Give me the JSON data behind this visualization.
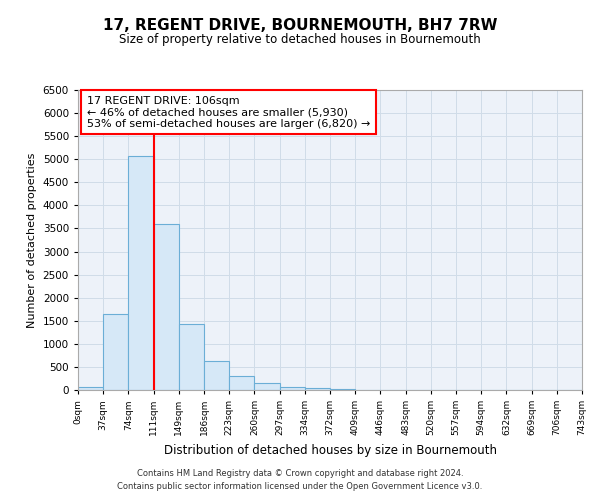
{
  "title": "17, REGENT DRIVE, BOURNEMOUTH, BH7 7RW",
  "subtitle": "Size of property relative to detached houses in Bournemouth",
  "xlabel": "Distribution of detached houses by size in Bournemouth",
  "ylabel": "Number of detached properties",
  "footnote1": "Contains HM Land Registry data © Crown copyright and database right 2024.",
  "footnote2": "Contains public sector information licensed under the Open Government Licence v3.0.",
  "tick_labels": [
    "0sqm",
    "37sqm",
    "74sqm",
    "111sqm",
    "149sqm",
    "186sqm",
    "223sqm",
    "260sqm",
    "297sqm",
    "334sqm",
    "372sqm",
    "409sqm",
    "446sqm",
    "483sqm",
    "520sqm",
    "557sqm",
    "594sqm",
    "632sqm",
    "669sqm",
    "706sqm",
    "743sqm"
  ],
  "bar_values": [
    75,
    1650,
    5075,
    3600,
    1425,
    625,
    300,
    150,
    75,
    50,
    25,
    0,
    0,
    0,
    0,
    0,
    0,
    0,
    0,
    0
  ],
  "bar_color": "#d6e8f7",
  "bar_edge_color": "#6baed6",
  "red_line_x": 3.0,
  "ylim": [
    0,
    6500
  ],
  "yticks": [
    0,
    500,
    1000,
    1500,
    2000,
    2500,
    3000,
    3500,
    4000,
    4500,
    5000,
    5500,
    6000,
    6500
  ],
  "annotation_title": "17 REGENT DRIVE: 106sqm",
  "annotation_line1": "← 46% of detached houses are smaller (5,930)",
  "annotation_line2": "53% of semi-detached houses are larger (6,820) →",
  "grid_color": "#d0dce8",
  "background_color": "#edf2f9"
}
